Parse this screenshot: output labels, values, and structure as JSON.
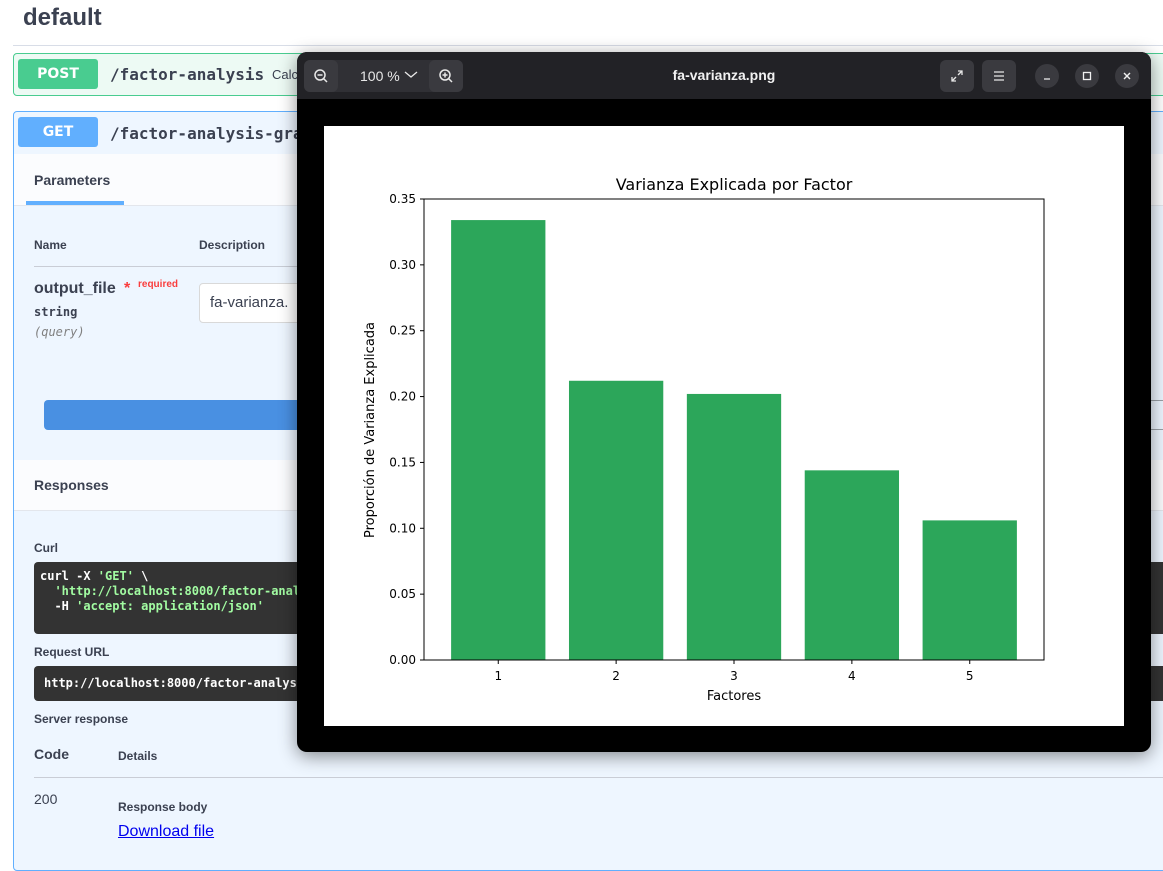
{
  "page": {
    "section_title": "default",
    "post_op": {
      "method": "POST",
      "path": "/factor-analysis",
      "summary": "Calc"
    },
    "get_op": {
      "method": "GET",
      "path": "/factor-analysis-gra"
    },
    "parameters_tab": "Parameters",
    "columns": {
      "name": "Name",
      "description": "Description"
    },
    "param": {
      "name": "output_file",
      "star": "*",
      "required": "required",
      "type": "string",
      "in": "(query)",
      "value": "fa-varianza."
    },
    "responses_label": "Responses",
    "curl_label": "Curl",
    "curl": {
      "line1_cmd": "curl -X ",
      "line1_str": "'GET'",
      "line1_end": " \\",
      "line2": "  'http://localhost:8000/factor-anal",
      "line3_cmd": "  -H ",
      "line3_str": "'accept: application/json'"
    },
    "request_url_label": "Request URL",
    "request_url": "http://localhost:8000/factor-analys",
    "server_response_label": "Server response",
    "code_header": "Code",
    "details_header": "Details",
    "code_value": "200",
    "response_body_label": "Response body",
    "download_link": "Download file"
  },
  "viewer": {
    "title": "fa-varianza.png",
    "zoom": "100 %",
    "icons": [
      "zoom-out-icon",
      "chevron-down-icon",
      "zoom-in-icon",
      "fullscreen-icon",
      "menu-icon",
      "minimize-icon",
      "maximize-icon",
      "close-icon"
    ]
  },
  "colors": {
    "bar": "#2ca65a",
    "post": "#49cc90",
    "get": "#61affe",
    "execute": "#4990e2"
  },
  "chart_data": {
    "type": "bar",
    "title": "Varianza Explicada por Factor",
    "xlabel": "Factores",
    "ylabel": "Proporción de Varianza Explicada",
    "categories": [
      "1",
      "2",
      "3",
      "4",
      "5"
    ],
    "values": [
      0.334,
      0.212,
      0.202,
      0.144,
      0.106
    ],
    "ylim": [
      0,
      0.35
    ],
    "yticks": [
      "0.00",
      "0.05",
      "0.10",
      "0.15",
      "0.20",
      "0.25",
      "0.30",
      "0.35"
    ],
    "grid": false
  }
}
